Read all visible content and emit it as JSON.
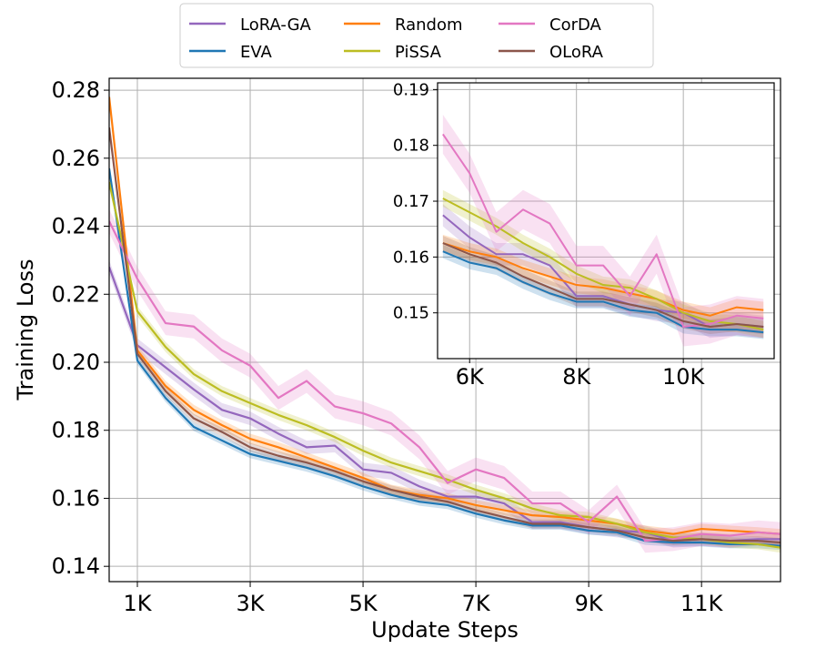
{
  "chart_data": {
    "type": "line",
    "xlabel": "Update Steps",
    "ylabel": "Training Loss",
    "xlim": [
      500,
      12400
    ],
    "ylim": [
      0.1355,
      0.2835
    ],
    "xticks": [
      1000,
      3000,
      5000,
      7000,
      9000,
      11000
    ],
    "xtick_labels": [
      "1K",
      "3K",
      "5K",
      "7K",
      "9K",
      "11K"
    ],
    "yticks": [
      0.14,
      0.16,
      0.18,
      0.2,
      0.22,
      0.24,
      0.26,
      0.28
    ],
    "ytick_labels": [
      "0.14",
      "0.16",
      "0.18",
      "0.20",
      "0.22",
      "0.24",
      "0.26",
      "0.28"
    ],
    "grid": true,
    "legend_position": "top-center",
    "x": [
      500,
      1000,
      1500,
      2000,
      2500,
      3000,
      3500,
      4000,
      4500,
      5000,
      5500,
      6000,
      6500,
      7000,
      7500,
      8000,
      8500,
      9000,
      9500,
      10000,
      10500,
      11000,
      11500,
      12000,
      12400
    ],
    "series": [
      {
        "name": "LoRA-GA",
        "color": "#9467bd",
        "band": 0.002,
        "values": [
          0.228,
          0.205,
          0.1985,
          0.192,
          0.186,
          0.1835,
          0.179,
          0.175,
          0.1755,
          0.1685,
          0.1675,
          0.1635,
          0.1605,
          0.1605,
          0.1585,
          0.153,
          0.153,
          0.1515,
          0.1505,
          0.15,
          0.1475,
          0.148,
          0.1475,
          0.148,
          0.148
        ]
      },
      {
        "name": "EVA",
        "color": "#1f77b4",
        "band": 0.0012,
        "values": [
          0.257,
          0.2005,
          0.1895,
          0.181,
          0.177,
          0.173,
          0.171,
          0.169,
          0.1665,
          0.1635,
          0.161,
          0.159,
          0.158,
          0.1555,
          0.1535,
          0.152,
          0.152,
          0.1505,
          0.15,
          0.1475,
          0.147,
          0.147,
          0.1465,
          0.1465,
          0.146
        ]
      },
      {
        "name": "Random",
        "color": "#ff7f0e",
        "band": 0.0015,
        "values": [
          0.278,
          0.2035,
          0.193,
          0.186,
          0.1815,
          0.1775,
          0.175,
          0.172,
          0.169,
          0.166,
          0.1625,
          0.161,
          0.16,
          0.158,
          0.1565,
          0.155,
          0.1545,
          0.1535,
          0.1525,
          0.1505,
          0.1495,
          0.151,
          0.1505,
          0.15,
          0.1495
        ]
      },
      {
        "name": "PiSSA",
        "color": "#bcbd22",
        "band": 0.0015,
        "values": [
          0.253,
          0.215,
          0.2045,
          0.1965,
          0.1915,
          0.188,
          0.1845,
          0.1815,
          0.178,
          0.174,
          0.1705,
          0.168,
          0.1655,
          0.1625,
          0.16,
          0.157,
          0.155,
          0.1545,
          0.1525,
          0.15,
          0.1485,
          0.148,
          0.147,
          0.1465,
          0.1455
        ]
      },
      {
        "name": "CorDA",
        "color": "#e377c2",
        "band": 0.0035,
        "values": [
          0.2415,
          0.2245,
          0.2115,
          0.2105,
          0.2035,
          0.199,
          0.1895,
          0.1945,
          0.187,
          0.185,
          0.182,
          0.175,
          0.1645,
          0.1685,
          0.166,
          0.1585,
          0.1585,
          0.153,
          0.1605,
          0.1475,
          0.148,
          0.1495,
          0.149,
          0.15,
          0.1495
        ]
      },
      {
        "name": "OLoRA",
        "color": "#8c564b",
        "band": 0.0013,
        "values": [
          0.269,
          0.2025,
          0.1915,
          0.1835,
          0.1795,
          0.175,
          0.1725,
          0.1705,
          0.168,
          0.165,
          0.1625,
          0.1605,
          0.159,
          0.1565,
          0.1545,
          0.1525,
          0.1525,
          0.1515,
          0.1505,
          0.1485,
          0.1475,
          0.148,
          0.1475,
          0.1475,
          0.147
        ]
      }
    ],
    "inset": {
      "xlim": [
        5400,
        11700
      ],
      "ylim": [
        0.1418,
        0.1912
      ],
      "xticks": [
        6000,
        8000,
        10000
      ],
      "xtick_labels": [
        "6K",
        "8K",
        "10K"
      ],
      "yticks": [
        0.15,
        0.16,
        0.17,
        0.18,
        0.19
      ],
      "ytick_labels": [
        "0.15",
        "0.16",
        "0.17",
        "0.18",
        "0.19"
      ],
      "x_from": 5500,
      "x_to": 11500
    }
  }
}
